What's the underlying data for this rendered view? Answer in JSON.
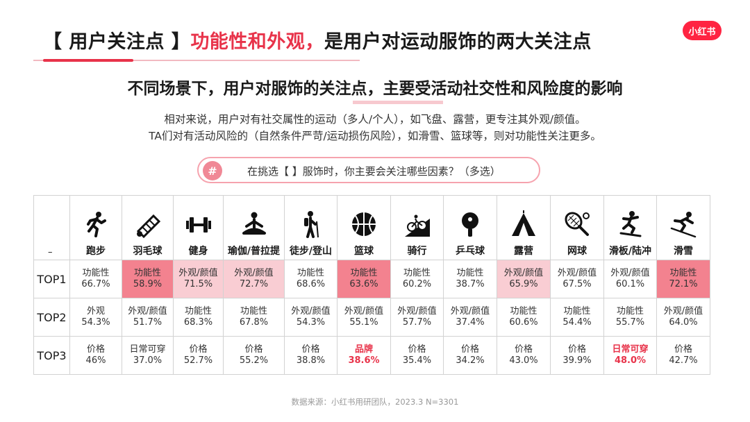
{
  "header": {
    "title_prefix": "【 用户关注点 】",
    "title_accent": "功能性和外观，",
    "title_suffix": "是用户对运动服饰的两大关注点",
    "logo": "小红书"
  },
  "subtitle": "不同场景下，用户对服饰的关注点，主要受活动社交性和风险度的影响",
  "description": [
    "相对来说，用户对有社交属性的运动（多人/个人），如飞盘、露营，更专注其外观/颜值。",
    "TA们对有活动风险的（自然条件严苛/运动损伤风险），如滑雪、篮球等，则对功能性关注更多。"
  ],
  "question": {
    "badge": "#",
    "text": "在挑选【 】服饰时，你主要会关注哪些因素？（多选）"
  },
  "table": {
    "corner": "–",
    "columns": [
      {
        "label": "跑步",
        "icon": "running-icon"
      },
      {
        "label": "羽毛球",
        "icon": "shuttlecock-icon"
      },
      {
        "label": "健身",
        "icon": "dumbbell-icon"
      },
      {
        "label": "瑜伽/普拉提",
        "icon": "yoga-icon"
      },
      {
        "label": "徒步/登山",
        "icon": "hiking-icon"
      },
      {
        "label": "篮球",
        "icon": "basketball-icon"
      },
      {
        "label": "骑行",
        "icon": "bicycle-icon"
      },
      {
        "label": "乒乓球",
        "icon": "ping-pong-icon"
      },
      {
        "label": "露营",
        "icon": "tent-icon"
      },
      {
        "label": "网球",
        "icon": "tennis-icon"
      },
      {
        "label": "滑板/陆冲",
        "icon": "skateboard-icon"
      },
      {
        "label": "滑雪",
        "icon": "ski-icon"
      }
    ],
    "rows": [
      {
        "label": "TOP1",
        "cells": [
          {
            "factor": "功能性",
            "pct": "66.7%",
            "hl": ""
          },
          {
            "factor": "功能性",
            "pct": "58.9%",
            "hl": "dark"
          },
          {
            "factor": "外观/颜值",
            "pct": "71.5%",
            "hl": "light"
          },
          {
            "factor": "外观/颜值",
            "pct": "72.7%",
            "hl": "light"
          },
          {
            "factor": "功能性",
            "pct": "68.6%",
            "hl": ""
          },
          {
            "factor": "功能性",
            "pct": "63.6%",
            "hl": "dark"
          },
          {
            "factor": "功能性",
            "pct": "60.2%",
            "hl": ""
          },
          {
            "factor": "功能性",
            "pct": "38.7%",
            "hl": ""
          },
          {
            "factor": "外观/颜值",
            "pct": "65.9%",
            "hl": "light"
          },
          {
            "factor": "外观/颜值",
            "pct": "67.5%",
            "hl": ""
          },
          {
            "factor": "外观/颜值",
            "pct": "60.1%",
            "hl": ""
          },
          {
            "factor": "功能性",
            "pct": "72.1%",
            "hl": "dark"
          }
        ]
      },
      {
        "label": "TOP2",
        "cells": [
          {
            "factor": "外观",
            "pct": "54.3%",
            "hl": ""
          },
          {
            "factor": "外观/颜值",
            "pct": "51.7%",
            "hl": ""
          },
          {
            "factor": "功能性",
            "pct": "68.3%",
            "hl": ""
          },
          {
            "factor": "功能性",
            "pct": "67.8%",
            "hl": ""
          },
          {
            "factor": "外观/颜值",
            "pct": "54.3%",
            "hl": ""
          },
          {
            "factor": "外观/颜值",
            "pct": "55.1%",
            "hl": ""
          },
          {
            "factor": "外观/颜值",
            "pct": "57.7%",
            "hl": ""
          },
          {
            "factor": "外观/颜值",
            "pct": "37.4%",
            "hl": ""
          },
          {
            "factor": "功能性",
            "pct": "60.6%",
            "hl": ""
          },
          {
            "factor": "功能性",
            "pct": "54.4%",
            "hl": ""
          },
          {
            "factor": "功能性",
            "pct": "55.7%",
            "hl": ""
          },
          {
            "factor": "外观/颜值",
            "pct": "64.0%",
            "hl": ""
          }
        ]
      },
      {
        "label": "TOP3",
        "cells": [
          {
            "factor": "价格",
            "pct": "46%",
            "hl": ""
          },
          {
            "factor": "日常可穿",
            "pct": "37.0%",
            "hl": ""
          },
          {
            "factor": "价格",
            "pct": "52.7%",
            "hl": ""
          },
          {
            "factor": "价格",
            "pct": "55.2%",
            "hl": ""
          },
          {
            "factor": "价格",
            "pct": "38.8%",
            "hl": ""
          },
          {
            "factor": "品牌",
            "pct": "38.6%",
            "hl": "text"
          },
          {
            "factor": "价格",
            "pct": "35.4%",
            "hl": ""
          },
          {
            "factor": "价格",
            "pct": "34.2%",
            "hl": ""
          },
          {
            "factor": "价格",
            "pct": "43.0%",
            "hl": ""
          },
          {
            "factor": "价格",
            "pct": "39.9%",
            "hl": ""
          },
          {
            "factor": "日常可穿",
            "pct": "48.0%",
            "hl": "text"
          },
          {
            "factor": "价格",
            "pct": "42.7%",
            "hl": ""
          }
        ]
      }
    ]
  },
  "source": "数据来源：小红书用研团队，2023.3 N=3301",
  "colors": {
    "accent": "#e8334a",
    "dark_highlight": "#f3828f",
    "light_highlight": "#f9cdd3"
  }
}
